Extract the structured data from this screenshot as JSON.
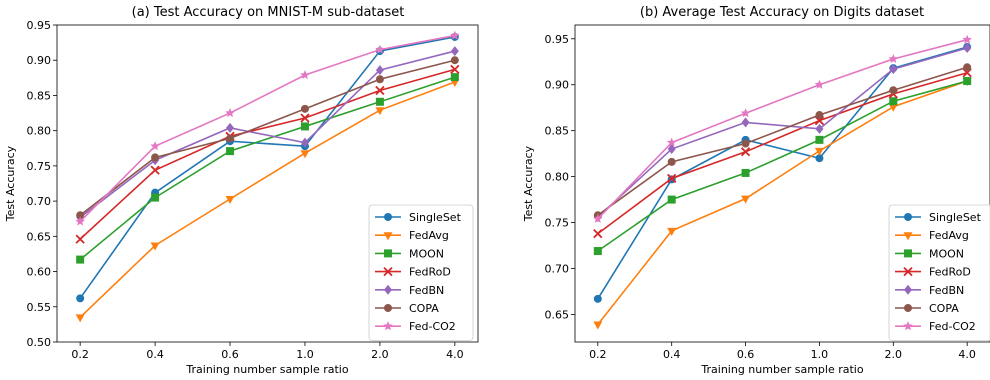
{
  "chart_data": [
    {
      "type": "line",
      "title": "(a) Test Accuracy on MNIST-M sub-dataset",
      "xlabel": "Training number sample ratio",
      "ylabel": "Test Accuracy",
      "categories": [
        "0.2",
        "0.4",
        "0.6",
        "1.0",
        "2.0",
        "4.0"
      ],
      "ylim": [
        0.5,
        0.95
      ],
      "yticks": [
        "0.50",
        "0.55",
        "0.60",
        "0.65",
        "0.70",
        "0.75",
        "0.80",
        "0.85",
        "0.90",
        "0.95"
      ],
      "grid": false,
      "legend": "lower-right",
      "series": [
        {
          "name": "SingleSet",
          "color": "#1f77b4",
          "marker": "circle",
          "values": [
            0.562,
            0.712,
            0.785,
            0.778,
            0.913,
            0.933
          ]
        },
        {
          "name": "FedAvg",
          "color": "#ff7f0e",
          "marker": "triangle-down",
          "values": [
            0.535,
            0.637,
            0.703,
            0.768,
            0.829,
            0.869
          ]
        },
        {
          "name": "MOON",
          "color": "#2ca02c",
          "marker": "square",
          "values": [
            0.617,
            0.705,
            0.771,
            0.806,
            0.841,
            0.876
          ]
        },
        {
          "name": "FedRoD",
          "color": "#d62728",
          "marker": "x",
          "values": [
            0.646,
            0.744,
            0.792,
            0.818,
            0.857,
            0.887
          ]
        },
        {
          "name": "FedBN",
          "color": "#9467bd",
          "marker": "diamond",
          "values": [
            0.677,
            0.758,
            0.804,
            0.783,
            0.886,
            0.913
          ]
        },
        {
          "name": "COPA",
          "color": "#8c564b",
          "marker": "circle",
          "values": [
            0.68,
            0.762,
            0.789,
            0.831,
            0.873,
            0.9
          ]
        },
        {
          "name": "Fed-CO2",
          "color": "#e377c2",
          "marker": "star",
          "values": [
            0.671,
            0.778,
            0.825,
            0.879,
            0.915,
            0.935
          ]
        }
      ]
    },
    {
      "type": "line",
      "title": "(b) Average Test Accuracy on Digits dataset",
      "xlabel": "Training number sample ratio",
      "ylabel": "Test Accuracy",
      "categories": [
        "0.2",
        "0.4",
        "0.6",
        "1.0",
        "2.0",
        "4.0"
      ],
      "ylim": [
        0.62,
        0.965
      ],
      "yticks": [
        "0.65",
        "0.70",
        "0.75",
        "0.80",
        "0.85",
        "0.90",
        "0.95"
      ],
      "grid": false,
      "legend": "lower-right",
      "series": [
        {
          "name": "SingleSet",
          "color": "#1f77b4",
          "marker": "circle",
          "values": [
            0.667,
            0.797,
            0.84,
            0.82,
            0.918,
            0.941
          ]
        },
        {
          "name": "FedAvg",
          "color": "#ff7f0e",
          "marker": "triangle-down",
          "values": [
            0.639,
            0.741,
            0.776,
            0.828,
            0.876,
            0.904
          ]
        },
        {
          "name": "MOON",
          "color": "#2ca02c",
          "marker": "square",
          "values": [
            0.719,
            0.775,
            0.804,
            0.84,
            0.882,
            0.904
          ]
        },
        {
          "name": "FedRoD",
          "color": "#d62728",
          "marker": "x",
          "values": [
            0.738,
            0.798,
            0.827,
            0.861,
            0.89,
            0.913
          ]
        },
        {
          "name": "FedBN",
          "color": "#9467bd",
          "marker": "diamond",
          "values": [
            0.756,
            0.83,
            0.859,
            0.852,
            0.917,
            0.94
          ]
        },
        {
          "name": "COPA",
          "color": "#8c564b",
          "marker": "circle",
          "values": [
            0.758,
            0.816,
            0.836,
            0.867,
            0.894,
            0.919
          ]
        },
        {
          "name": "Fed-CO2",
          "color": "#e377c2",
          "marker": "star",
          "values": [
            0.754,
            0.837,
            0.869,
            0.9,
            0.928,
            0.949
          ]
        }
      ]
    }
  ]
}
